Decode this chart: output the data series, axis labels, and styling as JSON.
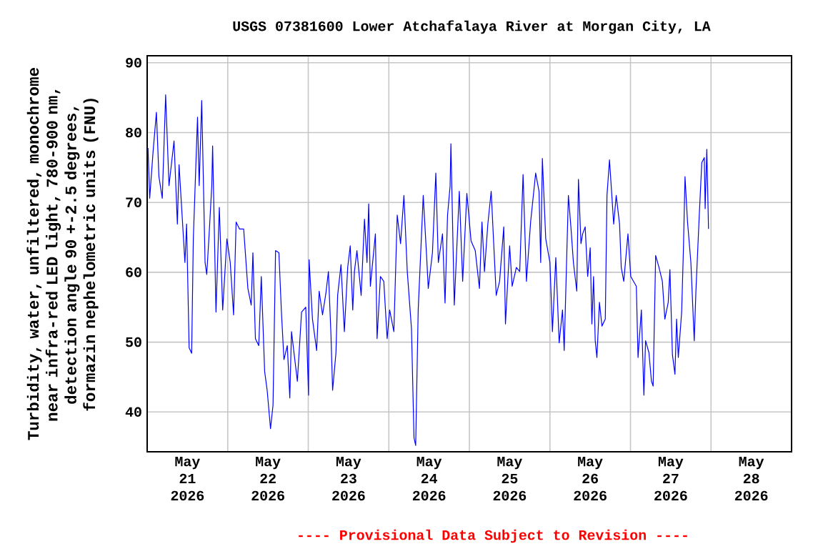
{
  "chart_data": {
    "type": "line",
    "title": "USGS 07381600 Lower Atchafalaya River at Morgan City, LA",
    "ylabel": "Turbidity, water, unfiltered, monochrome near infra-red LED light, 780-900 nm, detection angle 90 +-2.5 degrees, formazin nephelometric units (FNU)",
    "annotations": [
      "---- Provisional Data Subject to Revision ----"
    ],
    "xlim": [
      "2026-05-21",
      "2026-05-29"
    ],
    "ylim": [
      34.3,
      91
    ],
    "yticks": [
      40,
      50,
      60,
      70,
      80,
      90
    ],
    "xticks": [
      {
        "value": "2026-05-21",
        "label": null
      },
      {
        "value": "2026-05-22",
        "label": null
      },
      {
        "value": "2026-05-23",
        "label": null
      },
      {
        "value": "2026-05-24",
        "label": null
      },
      {
        "value": "2026-05-25",
        "label": null
      },
      {
        "value": "2026-05-26",
        "label": null
      },
      {
        "value": "2026-05-27",
        "label": null
      },
      {
        "value": "2026-05-28",
        "label": null
      },
      {
        "value": "2026-05-29",
        "label": null
      },
      {
        "value": "2026-05-21T12:00",
        "label": "May 21 2026"
      },
      {
        "value": "2026-05-22T12:00",
        "label": "May 22 2026"
      },
      {
        "value": "2026-05-23T12:00",
        "label": "May 23 2026"
      },
      {
        "value": "2026-05-24T12:00",
        "label": "May 24 2026"
      },
      {
        "value": "2026-05-25T12:00",
        "label": "May 25 2026"
      },
      {
        "value": "2026-05-26T12:00",
        "label": "May 26 2026"
      },
      {
        "value": "2026-05-27T12:00",
        "label": "May 27 2026"
      },
      {
        "value": "2026-05-28T12:00",
        "label": "May 28 2026"
      }
    ],
    "grid": true,
    "series": [
      {
        "color": "#0000ff",
        "x": [
          "2026-05-21T00:15",
          "2026-05-21T00:45",
          "2026-05-21T01:45",
          "2026-05-21T02:45",
          "2026-05-21T03:30",
          "2026-05-21T04:30",
          "2026-05-21T05:30",
          "2026-05-21T06:30",
          "2026-05-21T08:00",
          "2026-05-21T09:00",
          "2026-05-21T09:30",
          "2026-05-21T11:15",
          "2026-05-21T11:45",
          "2026-05-21T12:30",
          "2026-05-21T13:15",
          "2026-05-21T13:45",
          "2026-05-21T15:00",
          "2026-05-21T15:30",
          "2026-05-21T16:15",
          "2026-05-21T17:15",
          "2026-05-21T17:45",
          "2026-05-21T18:30",
          "2026-05-21T19:15",
          "2026-05-21T19:30",
          "2026-05-21T20:30",
          "2026-05-21T21:30",
          "2026-05-21T22:30",
          "2026-05-21T23:45",
          "2026-05-22T00:45",
          "2026-05-22T01:45",
          "2026-05-22T02:30",
          "2026-05-22T03:30",
          "2026-05-22T04:45",
          "2026-05-22T06:00",
          "2026-05-22T07:00",
          "2026-05-22T07:30",
          "2026-05-22T08:15",
          "2026-05-22T09:15",
          "2026-05-22T10:00",
          "2026-05-22T11:00",
          "2026-05-22T11:45",
          "2026-05-22T12:45",
          "2026-05-22T13:30",
          "2026-05-22T14:15",
          "2026-05-22T15:15",
          "2026-05-22T16:00",
          "2026-05-22T16:45",
          "2026-05-22T17:45",
          "2026-05-22T18:30",
          "2026-05-22T19:00",
          "2026-05-22T20:45",
          "2026-05-22T22:00",
          "2026-05-22T23:15",
          "2026-05-23T00:05",
          "2026-05-23T00:15",
          "2026-05-23T01:15",
          "2026-05-23T02:30",
          "2026-05-23T03:15",
          "2026-05-23T04:15",
          "2026-05-23T05:15",
          "2026-05-23T06:00",
          "2026-05-23T06:45",
          "2026-05-23T07:15",
          "2026-05-23T08:15",
          "2026-05-23T08:45",
          "2026-05-23T09:45",
          "2026-05-23T10:45",
          "2026-05-23T11:45",
          "2026-05-23T12:30",
          "2026-05-23T13:15",
          "2026-05-23T13:45",
          "2026-05-23T14:30",
          "2026-05-23T15:45",
          "2026-05-23T16:45",
          "2026-05-23T17:30",
          "2026-05-23T18:00",
          "2026-05-23T18:30",
          "2026-05-23T20:00",
          "2026-05-23T20:30",
          "2026-05-23T21:30",
          "2026-05-23T22:30",
          "2026-05-23T23:30",
          "2026-05-24T00:15",
          "2026-05-24T01:30",
          "2026-05-24T02:30",
          "2026-05-24T03:30",
          "2026-05-24T04:30",
          "2026-05-24T05:30",
          "2026-05-24T06:45",
          "2026-05-24T07:30",
          "2026-05-24T08:00",
          "2026-05-24T08:45",
          "2026-05-24T10:15",
          "2026-05-24T11:15",
          "2026-05-24T11:45",
          "2026-05-24T13:00",
          "2026-05-24T14:00",
          "2026-05-24T14:45",
          "2026-05-24T16:00",
          "2026-05-24T16:45",
          "2026-05-24T17:30",
          "2026-05-24T18:15",
          "2026-05-24T18:30",
          "2026-05-24T19:30",
          "2026-05-24T21:00",
          "2026-05-24T22:00",
          "2026-05-24T23:15",
          "2026-05-25T00:30",
          "2026-05-25T01:45",
          "2026-05-25T03:00",
          "2026-05-25T03:45",
          "2026-05-25T04:30",
          "2026-05-25T05:30",
          "2026-05-25T06:30",
          "2026-05-25T07:15",
          "2026-05-25T08:00",
          "2026-05-25T09:00",
          "2026-05-25T10:15",
          "2026-05-25T10:45",
          "2026-05-25T12:00",
          "2026-05-25T12:45",
          "2026-05-25T14:00",
          "2026-05-25T15:00",
          "2026-05-25T16:00",
          "2026-05-25T17:00",
          "2026-05-25T18:15",
          "2026-05-25T19:45",
          "2026-05-25T20:45",
          "2026-05-25T21:15",
          "2026-05-25T21:45",
          "2026-05-25T22:45",
          "2026-05-26T00:00",
          "2026-05-26T00:45",
          "2026-05-26T01:45",
          "2026-05-26T02:45",
          "2026-05-26T03:45",
          "2026-05-26T04:15",
          "2026-05-26T05:30",
          "2026-05-26T06:15",
          "2026-05-26T07:00",
          "2026-05-26T08:00",
          "2026-05-26T08:30",
          "2026-05-26T09:15",
          "2026-05-26T09:45",
          "2026-05-26T10:30",
          "2026-05-26T11:15",
          "2026-05-26T12:00",
          "2026-05-26T12:30",
          "2026-05-26T13:00",
          "2026-05-26T13:30",
          "2026-05-26T14:00",
          "2026-05-26T14:45",
          "2026-05-26T15:30",
          "2026-05-26T16:30",
          "2026-05-26T17:00",
          "2026-05-26T17:45",
          "2026-05-26T19:00",
          "2026-05-26T19:45",
          "2026-05-26T20:45",
          "2026-05-26T21:15",
          "2026-05-26T22:00",
          "2026-05-26T23:15",
          "2026-05-27T00:05",
          "2026-05-27T01:45",
          "2026-05-27T02:15",
          "2026-05-27T03:15",
          "2026-05-27T04:00",
          "2026-05-27T04:30",
          "2026-05-27T05:30",
          "2026-05-27T06:15",
          "2026-05-27T06:45",
          "2026-05-27T07:30",
          "2026-05-27T08:30",
          "2026-05-27T09:30",
          "2026-05-27T10:15",
          "2026-05-27T11:15",
          "2026-05-27T11:45",
          "2026-05-27T12:30",
          "2026-05-27T13:15",
          "2026-05-27T13:45",
          "2026-05-27T14:15",
          "2026-05-27T15:15",
          "2026-05-27T15:45",
          "2026-05-27T16:15",
          "2026-05-27T17:00",
          "2026-05-27T18:00",
          "2026-05-27T19:00",
          "2026-05-27T19:30",
          "2026-05-27T20:30",
          "2026-05-27T21:15",
          "2026-05-27T22:00",
          "2026-05-27T22:15",
          "2026-05-27T22:45",
          "2026-05-27T23:15"
        ],
        "values": [
          77.8,
          70.6,
          77.2,
          82.9,
          73.7,
          70.6,
          85.4,
          72.4,
          78.8,
          66.9,
          75.4,
          61.4,
          66.9,
          49.2,
          48.4,
          64.8,
          82.2,
          72.4,
          84.6,
          61.4,
          59.7,
          65.8,
          72.4,
          78.1,
          54.3,
          69.3,
          54.6,
          64.8,
          61.4,
          53.9,
          67.2,
          66.2,
          66.2,
          57.7,
          55.3,
          62.8,
          50.5,
          49.5,
          59.4,
          45.8,
          43.1,
          37.6,
          41.0,
          63.1,
          62.8,
          54.3,
          47.5,
          49.5,
          42.0,
          51.5,
          44.4,
          54.3,
          55.0,
          42.4,
          61.8,
          53.3,
          48.8,
          57.3,
          53.9,
          57.0,
          60.1,
          51.2,
          43.1,
          48.5,
          56.7,
          61.1,
          51.5,
          60.7,
          63.8,
          54.6,
          60.1,
          63.1,
          56.7,
          67.6,
          61.4,
          69.8,
          58.0,
          65.5,
          50.5,
          59.4,
          58.7,
          50.5,
          54.6,
          51.5,
          68.2,
          64.1,
          71.0,
          60.1,
          51.9,
          36.3,
          35.2,
          54.6,
          71.0,
          62.4,
          57.7,
          62.8,
          74.2,
          61.4,
          65.5,
          55.6,
          68.2,
          72.3,
          78.4,
          55.3,
          71.6,
          58.7,
          71.3,
          64.5,
          63.1,
          57.7,
          67.2,
          60.1,
          66.9,
          71.6,
          64.1,
          56.7,
          58.7,
          66.5,
          52.6,
          63.8,
          58.0,
          60.7,
          60.1,
          74.0,
          58.7,
          67.2,
          74.2,
          71.6,
          61.4,
          76.3,
          64.8,
          61.4,
          51.5,
          62.1,
          49.9,
          54.6,
          48.8,
          71.0,
          66.5,
          61.4,
          57.3,
          73.3,
          64.1,
          65.5,
          66.5,
          59.4,
          63.5,
          52.6,
          59.4,
          50.2,
          47.8,
          55.7,
          52.3,
          53.3,
          71.0,
          76.1,
          66.9,
          71.0,
          66.9,
          60.7,
          58.7,
          65.5,
          59.4,
          58.0,
          47.8,
          54.6,
          42.4,
          50.2,
          48.5,
          44.4,
          43.7,
          62.4,
          60.7,
          58.7,
          53.3,
          55.7,
          60.4,
          48.2,
          45.4,
          53.3,
          47.8,
          54.3,
          62.8,
          73.7,
          67.2,
          61.4,
          50.2,
          57.3,
          68.2,
          75.7,
          76.4,
          69.1,
          77.6,
          66.2
        ]
      }
    ]
  }
}
